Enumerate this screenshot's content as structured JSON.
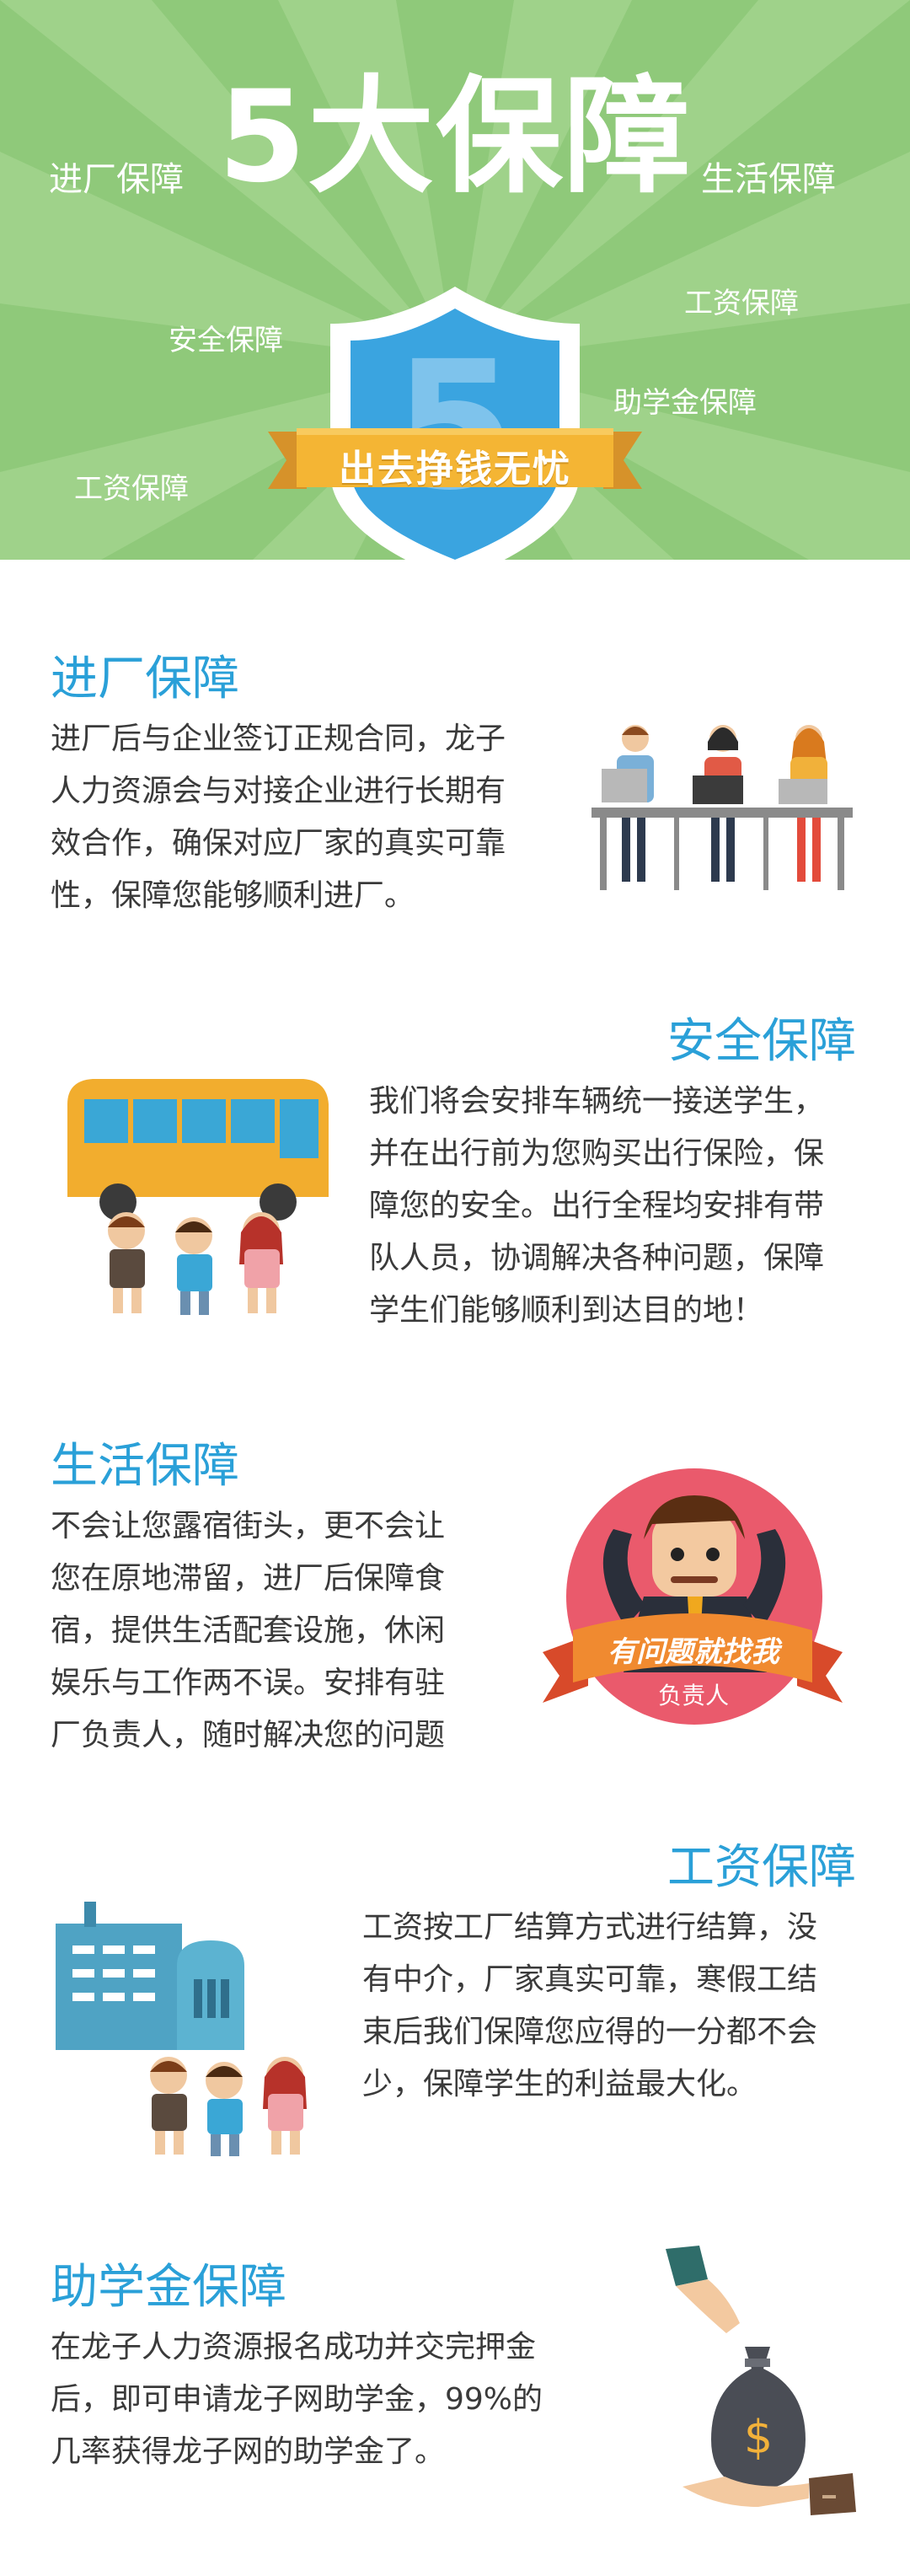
{
  "hero": {
    "headline": "5大保障",
    "tag_left": "进厂保障",
    "tag_right": "生活保障",
    "tag_salary_right": "工资保障",
    "tag_safety": "安全保障",
    "tag_grant": "助学金保障",
    "tag_salary_left": "工资保障",
    "shield_number": "5",
    "ribbon_text": "出去挣钱无忧",
    "colors": {
      "background": "#8fc97a",
      "shield": "#3aa4e0",
      "ribbon": "#f4b534"
    }
  },
  "sections": [
    {
      "title": "进厂保障",
      "lines": [
        "进厂后与企业签订正规合同，龙子",
        "人力资源会与对接企业进行长期有",
        "效合作，确保对应厂家的真实可靠",
        "性，保障您能够顺利进厂。"
      ],
      "illustration": "office-workers-illustration"
    },
    {
      "title": "安全保障",
      "lines": [
        "我们将会安排车辆统一接送学生，",
        "并在出行前为您购买出行保险，保",
        "障您的安全。出行全程均安排有带",
        "队人员，协调解决各种问题，保障",
        "学生们能够顺利到达目的地！"
      ],
      "illustration": "bus-students-illustration"
    },
    {
      "title": "生活保障",
      "lines": [
        "不会让您露宿街头，更不会让",
        "您在原地滞留，进厂后保障食",
        "宿，提供生活配套设施，休闲",
        "娱乐与工作两不误。安排有驻",
        "厂负责人，随时解决您的问题"
      ],
      "illustration": "manager-badge-illustration",
      "badge_banner": "有问题就找我",
      "badge_sub": "负责人"
    },
    {
      "title": "工资保障",
      "lines": [
        "工资按工厂结算方式进行结算，没",
        "有中介，厂家真实可靠，寒假工结",
        "束后我们保障您应得的一分都不会",
        "少，保障学生的利益最大化。"
      ],
      "illustration": "factory-students-illustration"
    },
    {
      "title": "助学金保障",
      "lines": [
        "在龙子人力资源报名成功并交完押金",
        "后，即可申请龙子网助学金，99%的",
        "几率获得龙子网的助学金了。"
      ],
      "illustration": "money-bag-illustration",
      "bag_symbol": "$"
    }
  ]
}
